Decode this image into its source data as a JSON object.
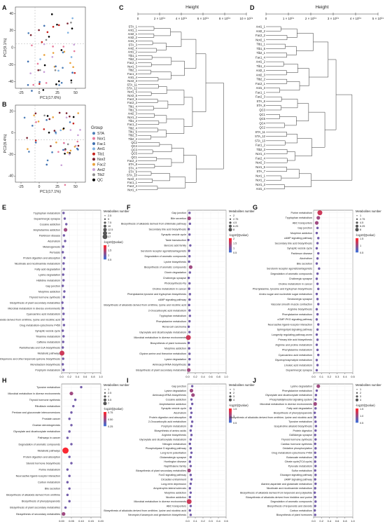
{
  "panel_labels": [
    "A",
    "B",
    "C",
    "D",
    "E",
    "F",
    "G",
    "H",
    "I",
    "J"
  ],
  "pca_a": {
    "xlabel": "PC1(17.6%)",
    "ylabel": "PC2(9.1%)",
    "xticks": [
      "-25",
      "0",
      "25",
      "50"
    ],
    "yticks": [
      "40",
      "20",
      "0",
      "-20",
      "-40"
    ]
  },
  "pca_b": {
    "xlabel": "PC1(17.1%)",
    "ylabel": "PC2(8.4%)",
    "xticks": [
      "-25",
      "0",
      "25",
      "50"
    ],
    "yticks": [
      "20",
      "0",
      "-20",
      "-40"
    ]
  },
  "legend": {
    "title": "Group",
    "items": [
      {
        "label": "STA",
        "color": "#4d7fb8"
      },
      {
        "label": "Nor1",
        "color": "#e87b9c"
      },
      {
        "label": "Fac1",
        "color": "#3f6fb0"
      },
      {
        "label": "Ant1",
        "color": "#7fb0e0"
      },
      {
        "label": "Tib1",
        "color": "#c8231e"
      },
      {
        "label": "Nor2",
        "color": "#7a1f2e"
      },
      {
        "label": "Fac2",
        "color": "#e9a23c"
      },
      {
        "label": "Ant2",
        "color": "#c9a0d8"
      },
      {
        "label": "Tib2",
        "color": "#8d8d8d"
      },
      {
        "label": "QC",
        "color": "#000000"
      }
    ]
  },
  "dendro_c": {
    "title": "Height",
    "ticks": [
      "0",
      "2 × 10⁰⁴",
      "4 × 10⁰⁴",
      "6 × 10⁰⁴",
      "8 × 10⁰⁴",
      "10 × 10⁰⁴"
    ],
    "leaves": [
      "STA_1",
      "Ant1_1",
      "Ant2_1",
      "Ant2_2",
      "Ant1_3",
      "STA_3",
      "Ant2_4",
      "Ant1_2",
      "Tib1_1",
      "Tib2_3",
      "Fac2_1",
      "Nor1_3",
      "Tib2_1",
      "Fac1_3",
      "Ant1_4",
      "Nor2_3",
      "STA_11",
      "STA_12",
      "Nor1_5",
      "Nor2_5",
      "Fac2_5",
      "Fac2_3",
      "Tib1_4",
      "Tib1_5",
      "Ant2_3",
      "Nor1_2",
      "Tib1_2",
      "Fac1_2",
      "Tib2_4",
      "Tib1_6",
      "Tib2_5",
      "Tib2_2",
      "QC2",
      "QC4",
      "QC3",
      "QC5",
      "QC1",
      "Fac2_2",
      "STA_8",
      "STA_4",
      "STA_9",
      "STA_10",
      "Nor2_4",
      "Fac1_1",
      "Fac2_4",
      "Nor1_4"
    ]
  },
  "dendro_d": {
    "title": "Height",
    "ticks": [
      "0",
      "1 × 10⁰⁴",
      "2 × 10⁰⁴",
      "3 × 10⁰⁴",
      "4 × 10⁰⁴",
      "5 × 10⁰⁴"
    ],
    "leaves": [
      "Ant1_1",
      "Ant2_2",
      "Fac2_2",
      "Nor2_1",
      "Tib1_1",
      "Tib1_5",
      "Tib2_1",
      "Fac1_4",
      "Ant1_2",
      "Tib1_4",
      "Ant2_1",
      "Ant2_3",
      "Tib2_2",
      "Fac2_1",
      "Ant1_3",
      "Fac1_1",
      "Fac2_3",
      "STA_6",
      "STA_8",
      "QC3",
      "QC1",
      "QC5",
      "QC4",
      "QC2",
      "STA_11",
      "STA_12",
      "STA_13",
      "Fac1_2",
      "Tib2_3",
      "Nor1_4",
      "Fac2_4",
      "Nor2_3",
      "Nor1_5",
      "STA_7",
      "Nor1_1",
      "Nor1_2",
      "Nor1_3",
      "Ant1_4"
    ]
  },
  "enrich": [
    {
      "id": "E",
      "terms": [
        "Tryptophan metabolism",
        "Dopaminergic synapse",
        "Cocaine addiction",
        "Amphetamine addiction",
        "Parkinson disease",
        "Alcoholism",
        "Melanogenesis",
        "Pertussis",
        "Protein digestion and absorption",
        "Nicotinate and nicotinamide metabolism",
        "Fatty acid degradation",
        "Lysine degradation",
        "Histidine metabolism",
        "Gap junction",
        "Morphine addiction",
        "Thyroid hormone synthesis",
        "Biosynthesis of plant secondary metabolites",
        "Microbial metabolism in diverse environments",
        "Cyanoamino acid metabolism",
        "Biosynthesis of alkaloids derived from ornithine, lysine and nicotinic acid",
        "Drug metabolism-cytochrome P450",
        "Synaptic vesicle cycle",
        "Thiamine metabolism",
        "Caffeine metabolism",
        "Pantothenate and CoA biosynthesis",
        "Metabolic pathways",
        "Ubiquinone and other terpenoid-quinone biosynthesis",
        "Monobactam biosynthesis",
        "Porphyrin metabolism"
      ],
      "values": [
        0.05,
        0.08,
        0.12,
        0.1,
        0.06,
        0.09,
        0.04,
        0.03,
        0.07,
        0.05,
        0.06,
        0.04,
        0.05,
        0.03,
        0.07,
        0.06,
        0.02,
        0.03,
        0.05,
        0.04,
        0.06,
        0.03,
        0.05,
        0.04,
        0.03,
        0.01,
        0.04,
        0.03,
        0.05
      ],
      "sizes": [
        1,
        1,
        1,
        2,
        1,
        1,
        1,
        1,
        1,
        1,
        1,
        1,
        1,
        1,
        1,
        1,
        1,
        1,
        1,
        1,
        1,
        1,
        1,
        1,
        1,
        3,
        1,
        1,
        1
      ],
      "xticks": [
        "0.0",
        "0.2",
        "0.4",
        "0.6",
        "0.8",
        "1.0"
      ],
      "legend_title": "Metabolites number",
      "legend_sizes": [
        "2.5",
        "5",
        "7.5",
        "10",
        "12.5",
        "15",
        "17"
      ],
      "color_title": "-log10(Qvalue)",
      "color_ticks": [
        "2",
        "1.5",
        "1",
        "0.5"
      ]
    },
    {
      "id": "F",
      "terms": [
        "Gap junction",
        "Bile secretion",
        "Biosynthesis of alkaloids derived from shikimate pathway",
        "Secondary bile acid biosynthesis",
        "Synaptic vesicle cycle",
        "Taste transduction",
        "Benzoic acid family",
        "Serotonin receptor agonists/antagonists",
        "Degradation of aromatic compounds",
        "Lysine biosynthesis",
        "Biosynthesis of aromatic compounds",
        "Dioxin degradation",
        "Cholinergic synapse",
        "Photosynthesis-Fly",
        "Choline metabolism in cancer",
        "Phenylalanine,tyrosine and tryptophan biosynthesis",
        "cAMP signaling pathway",
        "Biosynthesis of alkaloids derived from ornithine, lysine and nicotinic acid",
        "2-Oxocarboxylic acid metabolism",
        "Tryptophan metabolism",
        "Phenylalanine metabolism",
        "Renal cell carcinoma",
        "Glyoxylate and dicarboxylate metabolism",
        "Microbial metabolism in diverse environments",
        "Biosynthesis of plant hormones",
        "Morphine addiction",
        "Glycine,serine and threonine metabolism",
        "Lysine degradation",
        "Aminoacyl-tRNA biosynthesis",
        "Biosynthesis of plant secondary metabolites"
      ],
      "values": [
        0.05,
        0.04,
        0.06,
        0.03,
        0.05,
        0.02,
        0.07,
        0.04,
        0.05,
        0.04,
        0.08,
        0.06,
        0.03,
        0.05,
        0.04,
        0.06,
        0.05,
        0.04,
        0.05,
        0.06,
        0.05,
        0.03,
        0.05,
        0.02,
        0.03,
        0.04,
        0.05,
        0.05,
        0.04,
        0.03
      ],
      "sizes": [
        1,
        2,
        1,
        1,
        1,
        1,
        1,
        1,
        1,
        1,
        2,
        1,
        1,
        1,
        1,
        1,
        1,
        1,
        1,
        1,
        1,
        1,
        1,
        3,
        1,
        1,
        1,
        1,
        1,
        2
      ],
      "xticks": [
        "0.0",
        "0.2",
        "0.4",
        "0.6",
        "0.8",
        "1.0"
      ],
      "legend_title": "Metabolites number",
      "legend_sizes": [
        "2",
        "2.75",
        "4.5",
        "6.25",
        "8"
      ],
      "color_title": "-log10(Qvalue)",
      "color_ticks": [
        "2",
        "1.5",
        "1",
        "0.5"
      ]
    },
    {
      "id": "G",
      "terms": [
        "Purine metabolism",
        "Tryptophan metabolism",
        "ABC transporters",
        "Gap junction",
        "Morphine addiction",
        "cAMP signaling pathway",
        "Secondary bile acid biosynthesis",
        "Synaptic vesicle cycle",
        "Parkinson disease",
        "Alcoholism",
        "Bile secretion",
        "Serotonin receptor agonists/antagonists",
        "Degradation of aromatic compounds",
        "Cholinergic synapse",
        "Choline metabolism in cancer",
        "Phenylalanine, tyrosine and tryptophan biosynthesis",
        "Amino sugar and nucleotide sugar metabolism",
        "Serotonergic synapse",
        "Vascular smooth muscle contraction",
        "Arginine biosynthesis",
        "Phenylalanine metabolism",
        "cGMP-PKG signaling pathway",
        "Neuroactive ligand-receptor interaction",
        "Sphingolipid signaling pathway",
        "Longevity regulating pathway-worm",
        "Primary bile acid biosynthesis",
        "Arginine and proline metabolism",
        "Phenylalanine metabolism",
        "Cyanoamino acid metabolism",
        "Glycerophospholipid metabolism",
        "Linoleic acid metabolism",
        "Dopaminergic synapse"
      ],
      "values": [
        0.08,
        0.06,
        0.04,
        0.05,
        0.04,
        0.06,
        0.05,
        0.04,
        0.06,
        0.05,
        0.04,
        0.07,
        0.05,
        0.04,
        0.05,
        0.06,
        0.04,
        0.05,
        0.06,
        0.04,
        0.05,
        0.04,
        0.06,
        0.05,
        0.04,
        0.05,
        0.04,
        0.05,
        0.06,
        0.04,
        0.05,
        0.04
      ],
      "sizes": [
        3,
        2,
        2,
        1,
        1,
        1,
        1,
        1,
        1,
        1,
        1,
        1,
        1,
        1,
        1,
        1,
        1,
        1,
        1,
        1,
        1,
        1,
        1,
        1,
        1,
        1,
        1,
        1,
        1,
        1,
        1,
        1
      ],
      "xticks": [
        "0.0",
        "0.1",
        "0.2",
        "0.3",
        "0.4",
        "0.5"
      ],
      "legend_title": "Metabolites number",
      "legend_sizes": [
        "1",
        "2.75",
        "4.5",
        "6.25",
        "8"
      ],
      "color_title": "-log10(Qvalue)",
      "color_ticks": [
        "1.5",
        "1",
        "0.5"
      ]
    },
    {
      "id": "H",
      "terms": [
        "Tyrosine metabolism",
        "Microbial metabolism in diverse environments",
        "Thyroid hormone synthesis",
        "Riboflavin metabolism",
        "Pentose and glucuronate interconversions",
        "Prostate cancer",
        "Ovarian steroidogenesis",
        "Glyoxylate and dicarboxylate metabolism",
        "Pathways in cancer",
        "Degradation of aromatic compounds",
        "Metabolic pathways",
        "Protein digestion and absorption",
        "Steroid hormone biosynthesis",
        "Purine metabolism",
        "Neuroactive ligand-receptor interaction",
        "Carbon metabolism",
        "Bile secretion",
        "Biosynthesis of alkaloids derived from ornithine",
        "Biosynthesis of phenylpropanoids",
        "Biosynthesis of plant secondary metabolites",
        "Biosynthesis of secondary metabolites"
      ],
      "values": [
        0.1,
        0.05,
        0.07,
        0.06,
        0.05,
        0.04,
        0.05,
        0.04,
        0.03,
        0.05,
        0.02,
        0.04,
        0.05,
        0.03,
        0.04,
        0.03,
        0.04,
        0.03,
        0.04,
        0.02,
        0.01
      ],
      "sizes": [
        1,
        2,
        1,
        1,
        1,
        1,
        1,
        1,
        1,
        1,
        4,
        1,
        1,
        1,
        1,
        1,
        1,
        1,
        1,
        1,
        2
      ],
      "xticks": [
        "0.00",
        "0.05",
        "0.10",
        "0.15",
        "0.20"
      ],
      "legend_title": "Metabolites number",
      "legend_sizes": [
        "1",
        "2.5",
        "4",
        "5.5",
        "7"
      ],
      "color_title": "-log10(Qvalue)",
      "color_ticks": [
        "0.75",
        "0.50",
        "0.25"
      ]
    },
    {
      "id": "I",
      "terms": [
        "Gap junction",
        "Lysine degradation",
        "Aminoacyl-tRNA biosynthesis",
        "Cocaine addiction",
        "Amphetamine addiction",
        "Synaptic vesicle cycle",
        "Alcoholism",
        "Protein digestion and absorption",
        "2-Oxocarboxylic acid metabolism",
        "Porphyrin metabolism",
        "Biosynthesis of amino acids",
        "Arginine biosynthesis",
        "Glyoxylate and dicarboxylate metabolism",
        "Nitrogen metabolism",
        "Phospholipase D signaling pathway",
        "Long-term potentiation",
        "Glutamatergic synapse",
        "Huntington disease",
        "Naphthalene family",
        "Biosynthesis of plant secondary metabolites",
        "FoxO signaling pathway",
        "Circadian entrainment",
        "Long-term depression",
        "Amyotrophic lateral sclerosis",
        "Morphine addiction",
        "Nicotine addiction",
        "Microbial metabolism in diverse environments",
        "ABC transporters",
        "Biosynthesis of alkaloids derived from ornithine, lysine and nicotinic acid",
        "Neomycin,Kanamycin and gentamicin biosynthesis"
      ],
      "values": [
        0.06,
        0.05,
        0.07,
        0.05,
        0.06,
        0.04,
        0.05,
        0.04,
        0.06,
        0.05,
        0.04,
        0.05,
        0.04,
        0.03,
        0.04,
        0.05,
        0.04,
        0.03,
        0.04,
        0.02,
        0.04,
        0.05,
        0.04,
        0.03,
        0.04,
        0.03,
        0.02,
        0.04,
        0.03,
        0.04
      ],
      "sizes": [
        1,
        2,
        2,
        1,
        1,
        1,
        1,
        1,
        1,
        1,
        1,
        1,
        1,
        1,
        1,
        1,
        1,
        1,
        1,
        2,
        1,
        1,
        1,
        1,
        1,
        1,
        3,
        1,
        1,
        1
      ],
      "xticks": [
        "0.0",
        "0.1",
        "0.2",
        "0.3",
        "0.4",
        "0.5"
      ],
      "legend_title": "Metabolites number",
      "legend_sizes": [
        "1",
        "2",
        "3",
        "4"
      ],
      "color_title": "-log10(Qvalue)",
      "color_ticks": [
        "1.5",
        "1",
        "0.5"
      ]
    },
    {
      "id": "J",
      "terms": [
        "Lysine degradation",
        "Phenylalanine metabolism",
        "Glyoxylate and dicarboxylate metabolism",
        "Phosphatidylinositol signaling system",
        "Microbial metabolism in diverse environments",
        "Fatty acid degradation",
        "Biosynthesis of phenylpropanoids",
        "Biosynthesis of alkaloids derived from ornithine, lysine and nicotinic acid",
        "Tyrosine metabolism",
        "Isoquinoline alkaloid biosynthesis",
        "Protein digestion",
        "GABAergic synapse",
        "Thyroid hormone synthesis",
        "Cardiac hormone synthesis",
        "Oxidative phosphorylation",
        "Drug metabolism-cytochrome P450",
        "Butanoate metabolism",
        "Citrate cycle(TCA cycle)",
        "Pyruvate metabolism",
        "Sulfur metabolism",
        "Glucagon signaling pathway",
        "cAMP signaling pathway",
        "Alanine,aspartate and glutamate metabolism",
        "Nicotinate and nicotinamide metabolism",
        "Biosynthesis of alkaloids derived from terpenoid and polyketide",
        "Biosynthesis of alkaloids derived from histidine and purine",
        "Degradation of aromatic compounds",
        "Biosynthesis of terpenoids and steroids",
        "Carbon metabolism",
        "Biosynthesis of plant hormones"
      ],
      "values": [
        0.12,
        0.08,
        0.06,
        0.05,
        0.04,
        0.05,
        0.03,
        0.04,
        0.05,
        0.06,
        0.05,
        0.04,
        0.05,
        0.04,
        0.05,
        0.04,
        0.05,
        0.04,
        0.05,
        0.04,
        0.05,
        0.04,
        0.05,
        0.04,
        0.03,
        0.04,
        0.05,
        0.04,
        0.03,
        0.04
      ],
      "sizes": [
        2,
        1,
        1,
        1,
        2,
        1,
        1,
        1,
        1,
        1,
        1,
        1,
        1,
        1,
        1,
        1,
        1,
        1,
        1,
        1,
        1,
        1,
        1,
        1,
        1,
        1,
        1,
        1,
        1,
        1
      ],
      "xticks": [
        "0.0",
        "0.2",
        "0.4",
        "0.6",
        "0.8",
        "1.0"
      ],
      "legend_title": "Metabolites number",
      "legend_sizes": [
        "1",
        "2",
        "3",
        "4"
      ],
      "color_title": "-log10(Qvalue)",
      "color_ticks": [
        "1.5",
        "1.0",
        "0.5"
      ]
    }
  ]
}
